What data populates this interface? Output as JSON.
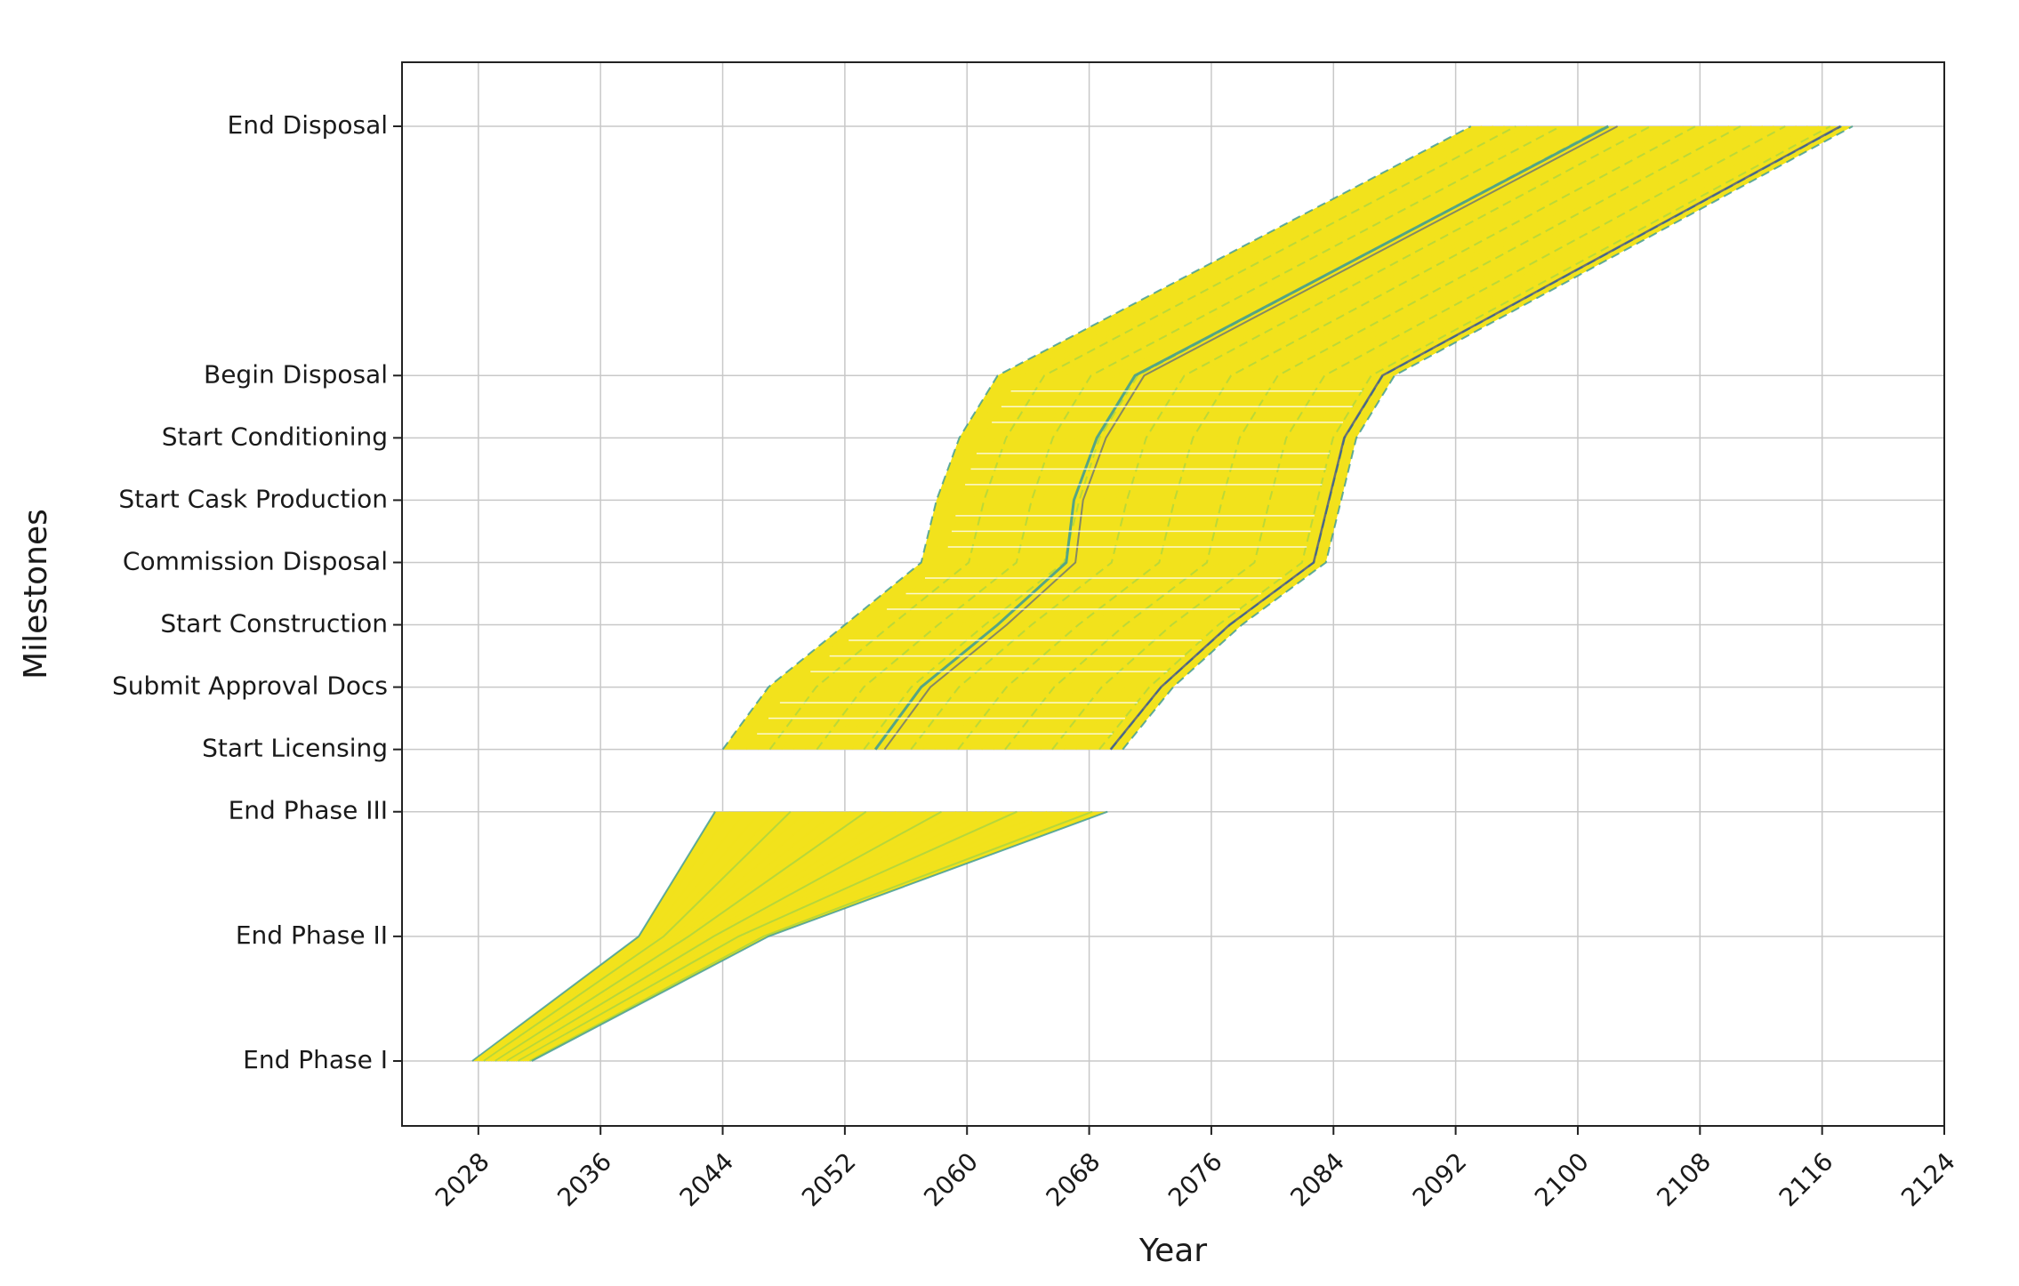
{
  "chart_data": {
    "type": "line",
    "title": "",
    "xlabel": "Year",
    "ylabel": "Milestones",
    "xlim": [
      2023,
      2124
    ],
    "xticks": [
      2028,
      2036,
      2044,
      2052,
      2060,
      2068,
      2076,
      2084,
      2092,
      2100,
      2108,
      2116,
      2124
    ],
    "grid": true,
    "legend": "none",
    "milestones": [
      {
        "label": "End Phase I",
        "level": 0
      },
      {
        "label": "End Phase II",
        "level": 1
      },
      {
        "label": "End Phase III",
        "level": 2
      },
      {
        "label": "Start Licensing",
        "level": 2.5
      },
      {
        "label": "Submit Approval Docs",
        "level": 3
      },
      {
        "label": "Start Construction",
        "level": 3.5
      },
      {
        "label": "Commission Disposal",
        "level": 4
      },
      {
        "label": "Start Cask Production",
        "level": 4.5
      },
      {
        "label": "Start Conditioning",
        "level": 5
      },
      {
        "label": "Begin Disposal",
        "level": 5.5
      },
      {
        "label": "End Disposal",
        "level": 7.5
      }
    ],
    "phase_segment": {
      "milestones": [
        "End Phase I",
        "End Phase II",
        "End Phase III"
      ],
      "series_early_edge": [
        2027.6,
        2038.5,
        2043.5
      ],
      "series_late_edge": [
        2031.5,
        2047.0,
        2069.2
      ]
    },
    "program_segment": {
      "milestones": [
        "Start Licensing",
        "Submit Approval Docs",
        "Start Construction",
        "Commission Disposal",
        "Start Cask Production",
        "Start Conditioning",
        "Begin Disposal",
        "End Disposal"
      ],
      "series_early_edge": [
        2044.0,
        2047.0,
        2052.0,
        2057.0,
        2058.0,
        2059.5,
        2062.0,
        2093.0
      ],
      "series_median": [
        2054.0,
        2057.0,
        2062.0,
        2066.5,
        2067.0,
        2068.5,
        2071.0,
        2102.0
      ],
      "series_late_edge": [
        2070.2,
        2073.5,
        2078.0,
        2083.5,
        2084.5,
        2085.5,
        2088.0,
        2118.0
      ]
    },
    "colors": {
      "fill": "#f2e21c",
      "mid": "#8fd14f",
      "edge": "#3b9a96",
      "dark": "#3e4f8f",
      "grid": "#c8c8c8"
    }
  }
}
